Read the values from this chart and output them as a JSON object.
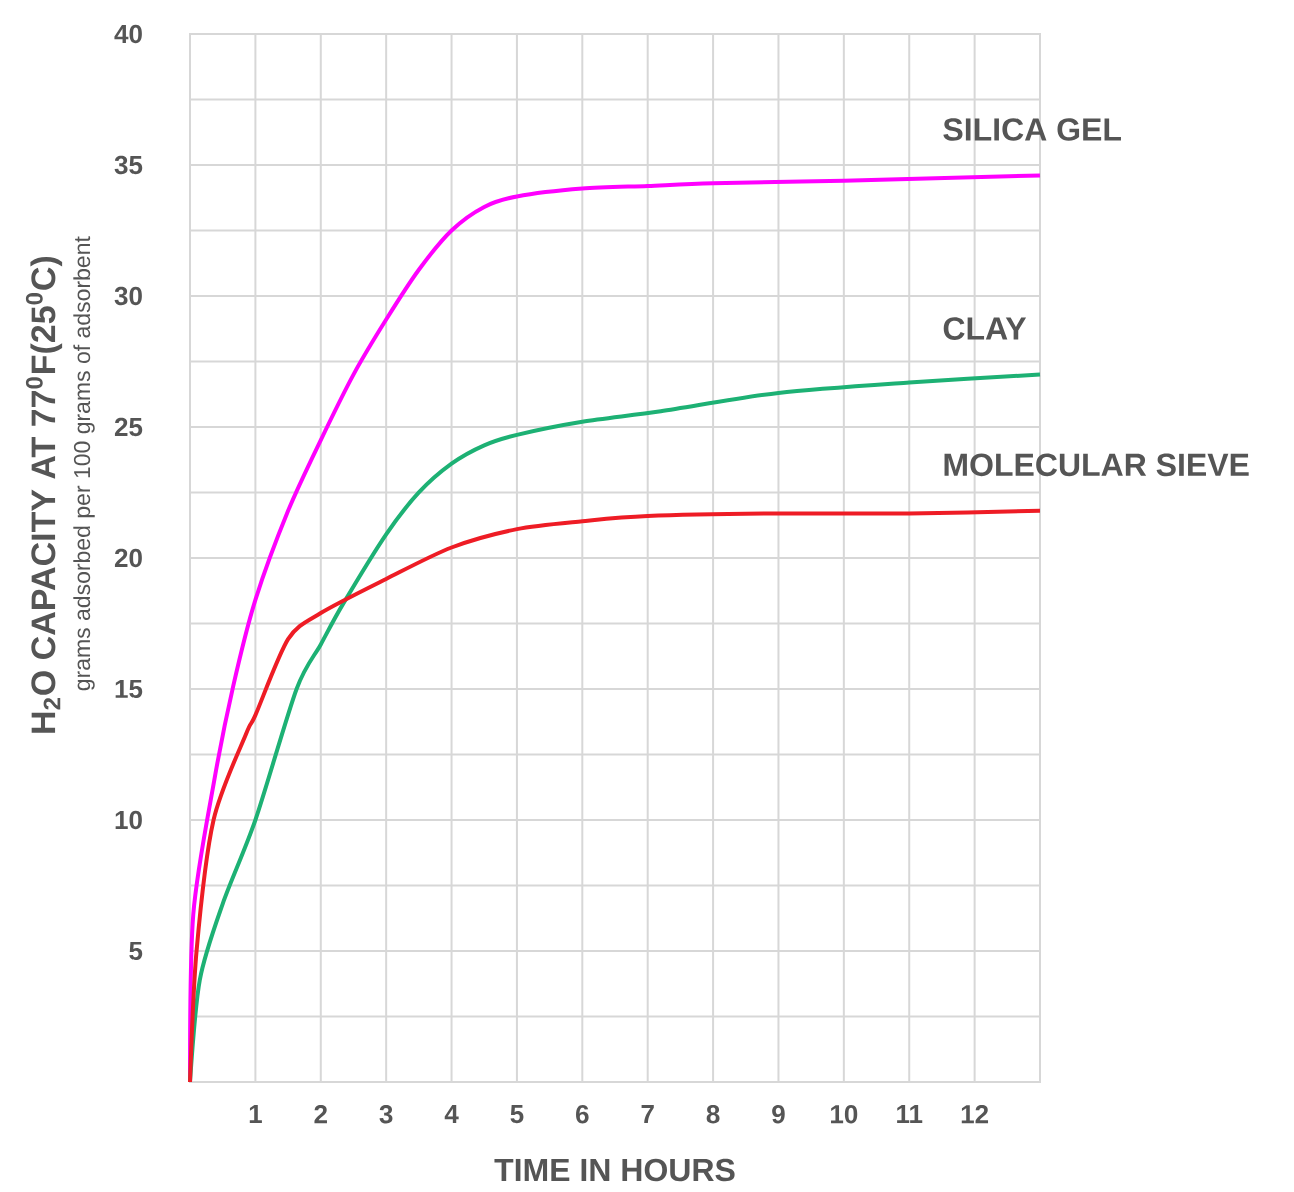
{
  "chart_data": {
    "type": "line",
    "xlabel": "TIME IN HOURS",
    "ylabel": "H$_{2}$O CAPACITY AT 77$^{0}$F(25$^{0}$C)",
    "annotations": [
      "grams adsorbed per 100 grams of adsorbent"
    ],
    "xlim": [
      0,
      13
    ],
    "ylim": [
      0,
      40
    ],
    "xticks": [
      1,
      2,
      3,
      4,
      5,
      6,
      7,
      8,
      9,
      10,
      11,
      12
    ],
    "yticks": [
      {
        "value": 2.5,
        "label": null
      },
      5,
      {
        "value": 7.5,
        "label": null
      },
      10,
      {
        "value": 12.5,
        "label": null
      },
      15,
      {
        "value": 17.5,
        "label": null
      },
      20,
      {
        "value": 22.5,
        "label": null
      },
      25,
      {
        "value": 27.5,
        "label": null
      },
      30,
      {
        "value": 32.5,
        "label": null
      },
      35,
      {
        "value": 37.5,
        "label": null
      },
      40
    ],
    "grid": true,
    "series": [
      {
        "name": "SILICA GEL",
        "color": "#ff00ff",
        "x": [
          0,
          0.05,
          0.37,
          0.66,
          1,
          1.5,
          2,
          2.5,
          3,
          3.5,
          4,
          4.5,
          5,
          6,
          7,
          8,
          10,
          13
        ],
        "values": [
          0,
          6.4,
          11.5,
          15.1,
          18.4,
          21.8,
          24.5,
          27.0,
          29.1,
          31.0,
          32.5,
          33.4,
          33.8,
          34.1,
          34.2,
          34.3,
          34.4,
          34.6
        ]
      },
      {
        "name": "CLAY",
        "color": "#1db174",
        "x": [
          0,
          0.15,
          0.5,
          1,
          1.63,
          2,
          2.33,
          3,
          3.5,
          4,
          4.5,
          5,
          6,
          7.2,
          9,
          11,
          13
        ],
        "values": [
          0,
          3.9,
          6.8,
          10,
          15,
          16.7,
          18.2,
          20.9,
          22.5,
          23.6,
          24.3,
          24.7,
          25.2,
          25.6,
          26.3,
          26.7,
          27.0
        ]
      },
      {
        "name": "MOLECULAR SIEVE",
        "color": "#ee1c25",
        "x": [
          0,
          0.1,
          0.36,
          0.86,
          1,
          1.5,
          2,
          3,
          4,
          5,
          6,
          7,
          9,
          11,
          13
        ],
        "values": [
          0,
          5,
          10,
          13.3,
          14.0,
          16.9,
          17.9,
          19.2,
          20.4,
          21.1,
          21.4,
          21.6,
          21.7,
          21.7,
          21.8
        ]
      }
    ]
  }
}
